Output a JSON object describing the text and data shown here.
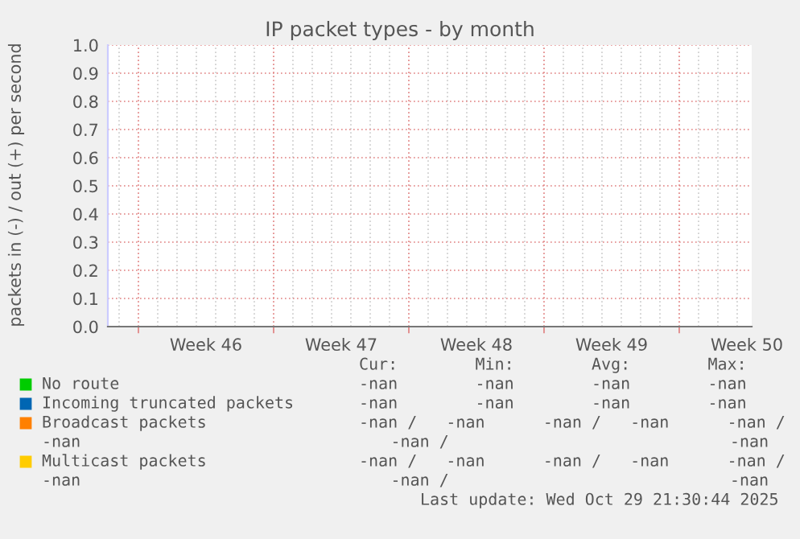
{
  "chart_data": {
    "type": "line",
    "title": "IP packet types - by month",
    "ylabel": "packets in (-) / out (+) per second",
    "series": [
      {
        "name": "No route",
        "color": "#00cc00",
        "values": [
          null,
          null,
          null,
          null,
          null
        ]
      },
      {
        "name": "Incoming truncated packets",
        "color": "#0066b3",
        "values": [
          null,
          null,
          null,
          null,
          null
        ]
      },
      {
        "name": "Broadcast packets",
        "color": "#ff8000",
        "values": [
          null,
          null,
          null,
          null,
          null
        ]
      },
      {
        "name": "Multicast packets",
        "color": "#ffcc00",
        "values": [
          null,
          null,
          null,
          null,
          null
        ]
      }
    ],
    "categories": [
      "Week 46",
      "Week 47",
      "Week 48",
      "Week 49",
      "Week 50"
    ],
    "ylim": [
      0,
      1.0
    ],
    "yticks": [
      {
        "value": 0,
        "label": "0.0"
      },
      0.1,
      0.2,
      0.3,
      0.4,
      0.5,
      0.6,
      0.7,
      0.8,
      0.9,
      {
        "value": 1.0,
        "label": "1.0"
      }
    ],
    "grid": true,
    "legend": "bottom",
    "annotations": [
      "Cur:        Min:        Avg:        Max:",
      "-nan        -nan        -nan        -nan",
      "-nan        -nan        -nan        -nan",
      "-nan /   -nan      -nan /   -nan      -nan /",
      "-nan                                -nan /                             -nan",
      "-nan /   -nan      -nan /   -nan      -nan /",
      "-nan                                -nan /                             -nan",
      "Last update: Wed Oct 29 21:30:44 2025"
    ]
  }
}
